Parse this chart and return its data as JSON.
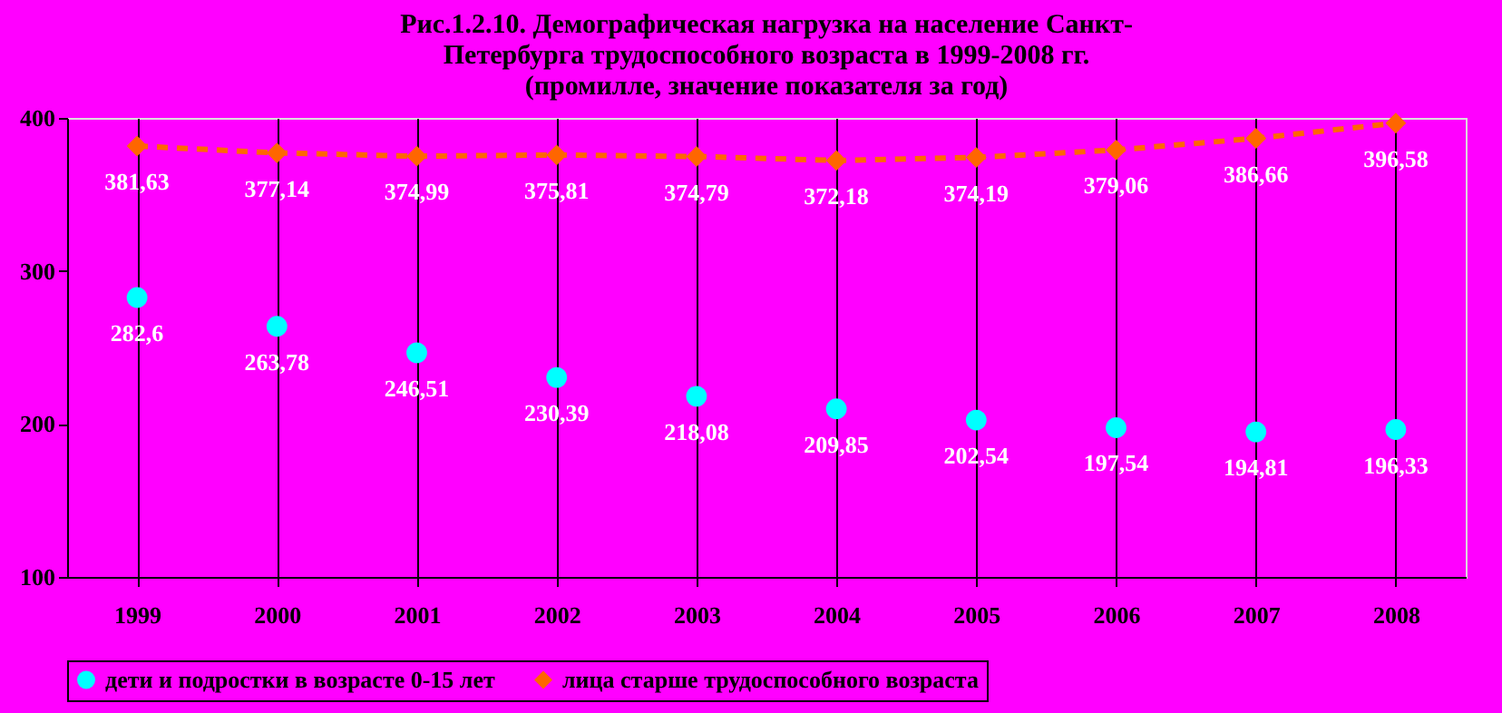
{
  "chart_data": {
    "type": "line",
    "title": [
      "Рис.1.2.10. Демографическая нагрузка на население Санкт-",
      "Петербурга трудоспособного возраста в 1999-2008 гг.",
      "(промилле, значение показателя за год)"
    ],
    "categories": [
      "1999",
      "2000",
      "2001",
      "2002",
      "2003",
      "2004",
      "2005",
      "2006",
      "2007",
      "2008"
    ],
    "series": [
      {
        "name": "дети и подростки в возрасте 0-15 лет",
        "type": "scatter",
        "marker": "circle",
        "color": "#00ffff",
        "values": [
          282.6,
          263.78,
          246.51,
          230.39,
          218.08,
          209.85,
          202.54,
          197.54,
          194.81,
          196.33
        ],
        "value_labels": [
          "282,6",
          "263,78",
          "246,51",
          "230,39",
          "218,08",
          "209,85",
          "202,54",
          "197,54",
          "194,81",
          "196,33"
        ]
      },
      {
        "name": "лица старше трудоспособного возраста",
        "marker": "diamond",
        "line_style": "dashed",
        "color": "#ff6600",
        "values": [
          381.63,
          377.14,
          374.99,
          375.81,
          374.79,
          372.18,
          374.19,
          379.06,
          386.66,
          396.58
        ],
        "value_labels": [
          "381,63",
          "377,14",
          "374,99",
          "375,81",
          "374,79",
          "372,18",
          "374,19",
          "379,06",
          "386,66",
          "396,58"
        ]
      }
    ],
    "ylim": [
      100,
      400
    ],
    "yticks": [
      100,
      200,
      300,
      400
    ],
    "grid": "x",
    "legend": "bottom"
  }
}
